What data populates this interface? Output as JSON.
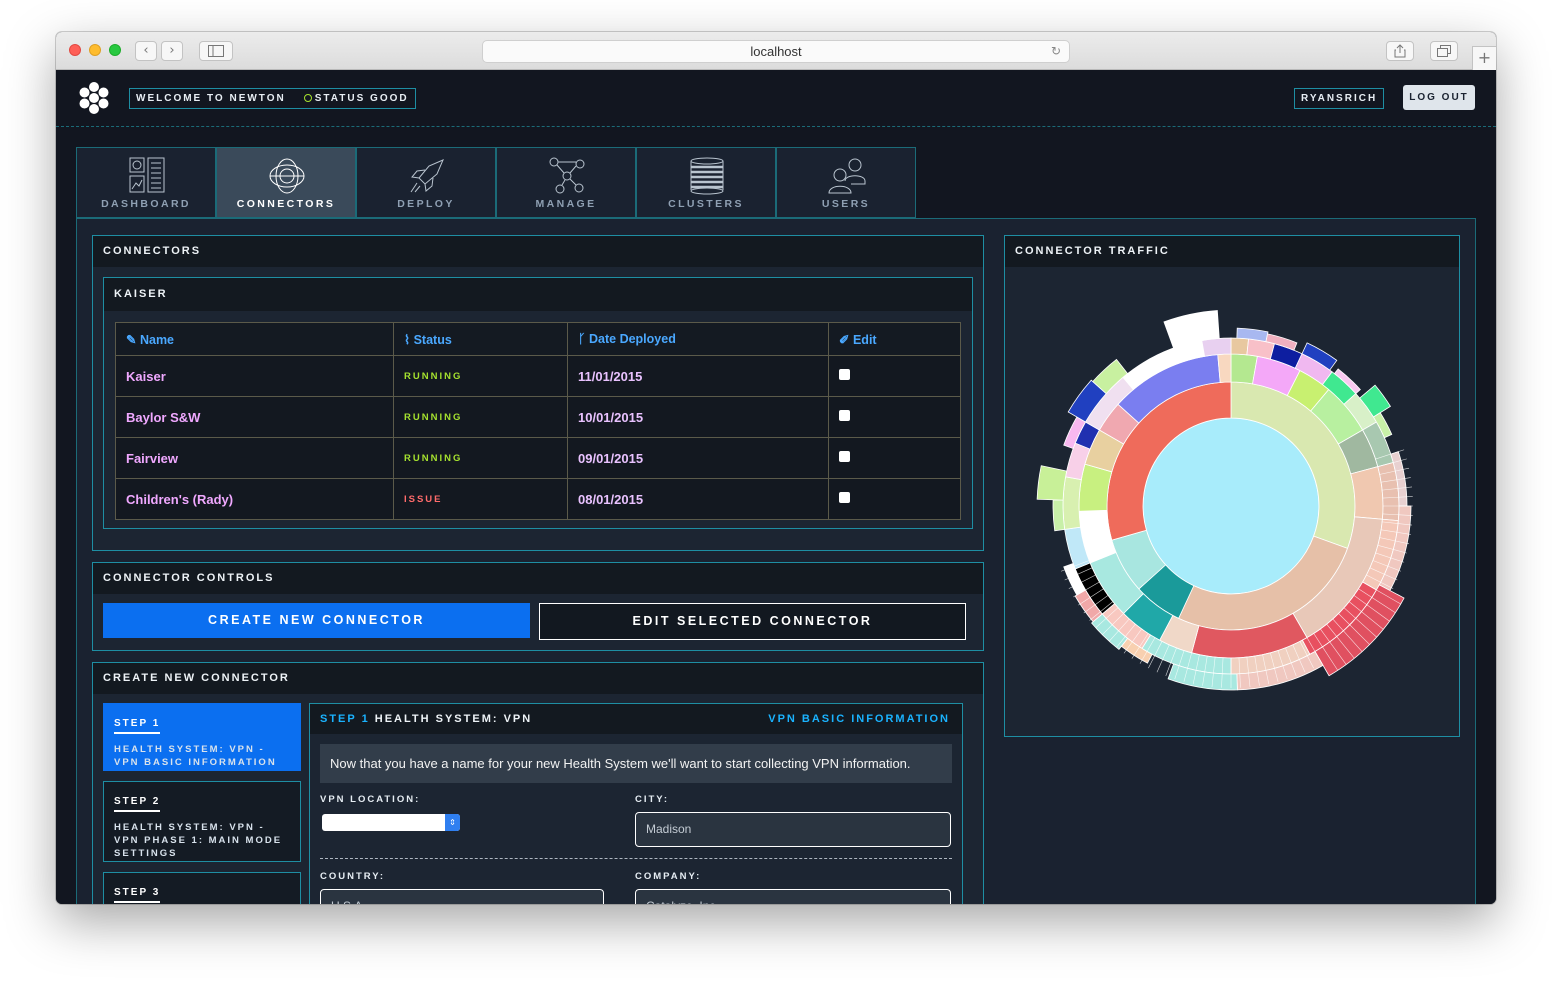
{
  "browser": {
    "url": "localhost",
    "back_icon": "‹",
    "forward_icon": "›",
    "reload_icon": "↻"
  },
  "header": {
    "welcome": "WELCOME TO NEWTON",
    "status": "STATUS GOOD",
    "username": "RYANSRICH",
    "logout": "LOG OUT"
  },
  "tabs": [
    {
      "label": "DASHBOARD",
      "icon": "dashboard-icon"
    },
    {
      "label": "CONNECTORS",
      "icon": "connectors-icon",
      "active": true
    },
    {
      "label": "DEPLOY",
      "icon": "rocket-icon"
    },
    {
      "label": "MANAGE",
      "icon": "network-icon"
    },
    {
      "label": "CLUSTERS",
      "icon": "server-stack-icon"
    },
    {
      "label": "USERS",
      "icon": "users-icon"
    }
  ],
  "connectors": {
    "title": "CONNECTORS",
    "group": "KAISER",
    "columns": [
      "Name",
      "Status",
      "Date Deployed",
      "Edit"
    ],
    "rows": [
      {
        "name": "Kaiser",
        "status": "RUNNING",
        "date": "11/01/2015"
      },
      {
        "name": "Baylor S&W",
        "status": "RUNNING",
        "date": "10/01/2015"
      },
      {
        "name": "Fairview",
        "status": "RUNNING",
        "date": "09/01/2015"
      },
      {
        "name": "Children's (Rady)",
        "status": "ISSUE",
        "date": "08/01/2015"
      }
    ]
  },
  "controls": {
    "title": "CONNECTOR CONTROLS",
    "create": "CREATE NEW CONNECTOR",
    "edit": "EDIT SELECTED CONNECTOR"
  },
  "create": {
    "title": "CREATE NEW CONNECTOR",
    "steps": [
      {
        "num": "STEP 1",
        "desc": "HEALTH SYSTEM: VPN - VPN BASIC INFORMATION"
      },
      {
        "num": "STEP 2",
        "desc": "HEALTH SYSTEM: VPN - VPN PHASE 1: MAIN MODE SETTINGS"
      },
      {
        "num": "STEP 3",
        "desc": ""
      }
    ],
    "form": {
      "step": "STEP 1",
      "heading": "HEALTH SYSTEM: VPN",
      "section": "VPN BASIC INFORMATION",
      "notice": "Now that you have a name for your new Health System we'll want to start collecting VPN information.",
      "vpn_location_label": "VPN LOCATION:",
      "city_label": "CITY:",
      "city_value": "Madison",
      "country_label": "COUNTRY:",
      "country_value": "U.S.A.",
      "company_label": "COMPANY:",
      "company_value": "Catalyze, Inc."
    }
  },
  "traffic": {
    "title": "CONNECTOR TRAFFIC"
  },
  "colors": {
    "accent": "#1e8ea3",
    "primary": "#0b6ff0",
    "running": "#a6e22e",
    "issue": "#ff6b6b",
    "link": "#4aa8ff",
    "name": "#f0a8ff"
  }
}
